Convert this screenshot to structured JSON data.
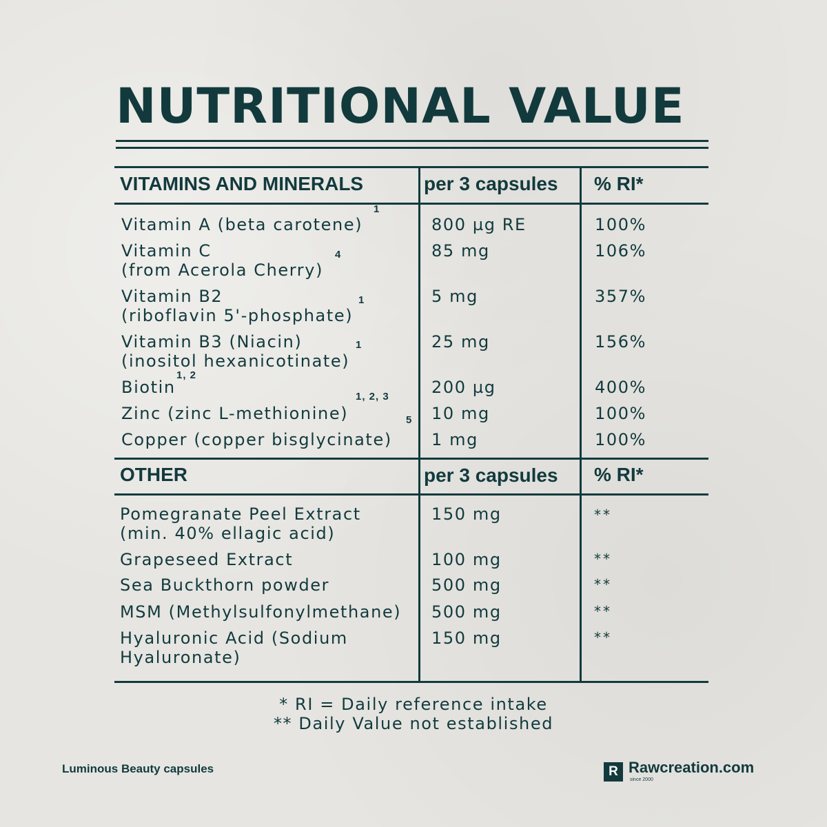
{
  "title": "NUTRITIONAL VALUE",
  "section1": {
    "header": {
      "name": "VITAMINS AND MINERALS",
      "amount": "per 3 capsules",
      "ri": "% RI*"
    },
    "rows": [
      {
        "line1": "Vitamin A (beta carotene)",
        "line2": "",
        "sup": "1",
        "amount": "800 µg RE",
        "ri": "100%"
      },
      {
        "line1": "Vitamin C",
        "line2": "(from Acerola Cherry)",
        "sup": "4",
        "amount": "85 mg",
        "ri": "106%"
      },
      {
        "line1": "Vitamin B2",
        "line2": "(riboflavin 5'-phosphate)",
        "sup": "1",
        "amount": "5 mg",
        "ri": "357%"
      },
      {
        "line1": "Vitamin B3 (Niacin)",
        "line2": "(inositol hexanicotinate)",
        "sup": "1",
        "amount": "25 mg",
        "ri": "156%"
      },
      {
        "line1": "Biotin",
        "line2": "",
        "sup": "1, 2",
        "amount": "200 µg",
        "ri": "400%"
      },
      {
        "line1": "Zinc (zinc L-methionine)",
        "line2": "",
        "sup": "1, 2, 3",
        "amount": "10 mg",
        "ri": "100%"
      },
      {
        "line1": "Copper (copper bisglycinate)",
        "line2": "",
        "sup": "5",
        "amount": "1 mg",
        "ri": "100%"
      }
    ]
  },
  "section2": {
    "header": {
      "name": "OTHER",
      "amount": "per 3 capsules",
      "ri": "% RI*"
    },
    "rows": [
      {
        "line1": "Pomegranate Peel Extract",
        "line2": "(min. 40% ellagic acid)",
        "amount": "150 mg",
        "ri": "**"
      },
      {
        "line1": "Grapeseed Extract",
        "line2": "",
        "amount": "100 mg",
        "ri": "**"
      },
      {
        "line1": "Sea Buckthorn powder",
        "line2": "",
        "amount": "500 mg",
        "ri": "**"
      },
      {
        "line1": "MSM (Methylsulfonylmethane)",
        "line2": "",
        "amount": "500 mg",
        "ri": "**"
      },
      {
        "line1": "Hyaluronic Acid (Sodium",
        "line2": "Hyaluronate)",
        "amount": "150 mg",
        "ri": "**"
      }
    ]
  },
  "footnotes": [
    "* RI = Daily reference intake",
    "** Daily Value not established"
  ],
  "product_name": "Luminous Beauty capsules",
  "brand": {
    "logo_letter": "R",
    "name": "Rawcreation.com",
    "since": "since 2000"
  },
  "colors": {
    "text": "#123a3d",
    "background": "#e6e5e1"
  }
}
